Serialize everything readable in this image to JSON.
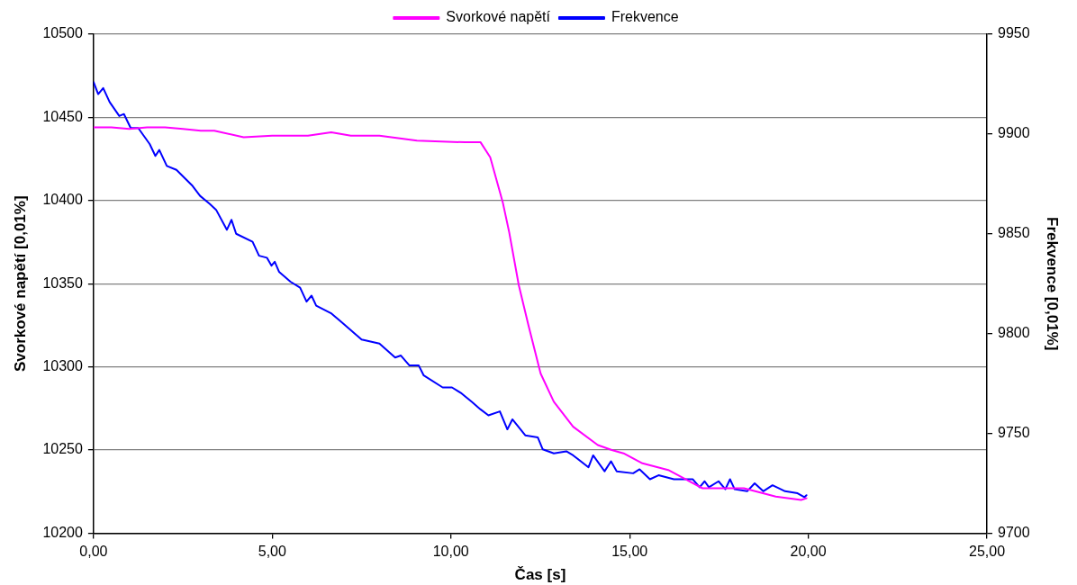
{
  "chart_data": {
    "type": "line",
    "xlabel": "Čas [s]",
    "ylabel": "Svorkové napětí [0,01%]",
    "y2label": "Frekvence [0,01%]",
    "xlim": [
      0,
      25
    ],
    "xticks": [
      {
        "value": 0,
        "label": "0,00"
      },
      {
        "value": 5,
        "label": "5,00"
      },
      {
        "value": 10,
        "label": "10,00"
      },
      {
        "value": 15,
        "label": "15,00"
      },
      {
        "value": 20,
        "label": "20,00"
      },
      {
        "value": 25,
        "label": "25,00"
      }
    ],
    "ylim": [
      10200,
      10500
    ],
    "yticks": [
      10200,
      10250,
      10300,
      10350,
      10400,
      10450,
      10500
    ],
    "y2lim": [
      9700,
      9950
    ],
    "y2ticks": [
      9700,
      9750,
      9800,
      9850,
      9900,
      9950
    ],
    "grid": "y",
    "legend": "top",
    "marker": "none",
    "line_style": "solid",
    "series": [
      {
        "name": "Svorkové napětí",
        "color": "#ff00ff",
        "x": [
          0,
          0.5,
          1,
          1.5,
          2,
          2.5,
          3,
          3.38,
          4.2,
          5,
          6,
          6.65,
          7.2,
          8,
          9.05,
          10.4,
          10.83,
          11.1,
          11.45,
          11.63,
          11.9,
          12.17,
          12.51,
          12.88,
          13.42,
          14.11,
          14.5,
          14.83,
          15.36,
          16.08,
          17.04,
          18.2,
          19.09,
          19.8,
          19.95
        ],
        "values": [
          10444,
          10444,
          10443,
          10444,
          10444,
          10443,
          10442,
          10442,
          10438,
          10439,
          10439,
          10441,
          10439,
          10439,
          10436,
          10435,
          10435,
          10426,
          10399,
          10381,
          10349,
          10325,
          10296,
          10279,
          10264,
          10253,
          10250,
          10248,
          10242,
          10238,
          10227,
          10227,
          10222,
          10220,
          10221
        ]
      },
      {
        "name": "Frekvence",
        "color": "#0000ff",
        "axis": "y2",
        "x": [
          0,
          0.13,
          0.27,
          0.45,
          0.72,
          0.85,
          1.04,
          1.25,
          1.57,
          1.73,
          1.84,
          2.05,
          2.32,
          2.77,
          2.98,
          3.25,
          3.43,
          3.73,
          3.86,
          3.99,
          4.45,
          4.63,
          4.85,
          4.98,
          5.07,
          5.19,
          5.51,
          5.78,
          5.96,
          6.1,
          6.23,
          6.66,
          6.92,
          7.5,
          8,
          8.44,
          8.6,
          8.84,
          9.1,
          9.24,
          9.77,
          10.03,
          10.3,
          10.57,
          10.83,
          11.05,
          11.37,
          11.58,
          11.72,
          12.08,
          12.43,
          12.57,
          12.88,
          13.23,
          13.42,
          13.85,
          13.98,
          14.3,
          14.48,
          14.64,
          15.1,
          15.28,
          15.57,
          15.81,
          16.24,
          16.77,
          16.96,
          17.1,
          17.22,
          17.49,
          17.68,
          17.81,
          17.94,
          18.29,
          18.5,
          18.74,
          19.0,
          19.35,
          19.7,
          19.89,
          19.95
        ],
        "values": [
          9926,
          9920,
          9923,
          9916,
          9909,
          9910,
          9903,
          9903,
          9895,
          9889,
          9892,
          9884,
          9882,
          9874,
          9869,
          9865,
          9862,
          9852,
          9857,
          9850,
          9846,
          9839,
          9838,
          9834,
          9836,
          9831,
          9826,
          9823,
          9816,
          9819,
          9814,
          9810,
          9806,
          9797,
          9795,
          9788,
          9789,
          9784,
          9784,
          9779,
          9773,
          9773,
          9770,
          9766,
          9762,
          9759,
          9761,
          9752,
          9757,
          9749,
          9748,
          9742,
          9740,
          9741,
          9739,
          9733,
          9739,
          9731,
          9736,
          9731,
          9730,
          9732,
          9727,
          9729,
          9727,
          9727,
          9723,
          9726,
          9723,
          9726,
          9722,
          9727,
          9722,
          9721,
          9725,
          9721,
          9724,
          9721,
          9720,
          9718,
          9719
        ]
      }
    ]
  }
}
